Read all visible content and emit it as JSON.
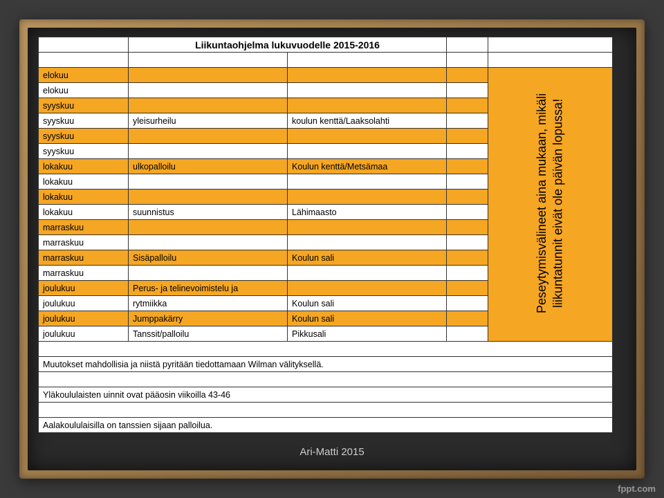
{
  "title": "Liikuntaohjelma lukuvuodelle 2015-2016",
  "rows": [
    {
      "c1": "elokuu",
      "c2": "",
      "c3": "",
      "bg": "yellow"
    },
    {
      "c1": "elokuu",
      "c2": "",
      "c3": "",
      "bg": "white"
    },
    {
      "c1": "syyskuu",
      "c2": "",
      "c3": "",
      "bg": "yellow"
    },
    {
      "c1": "syyskuu",
      "c2": "yleisurheilu",
      "c3": "koulun kenttä/Laaksolahti",
      "bg": "white"
    },
    {
      "c1": "syyskuu",
      "c2": "",
      "c3": "",
      "bg": "yellow"
    },
    {
      "c1": "syyskuu",
      "c2": "",
      "c3": "",
      "bg": "white"
    },
    {
      "c1": "lokakuu",
      "c2": "ulkopalloilu",
      "c3": "Koulun kenttä/Metsämaa",
      "bg": "yellow"
    },
    {
      "c1": "lokakuu",
      "c2": "",
      "c3": "",
      "bg": "white"
    },
    {
      "c1": "lokakuu",
      "c2": "",
      "c3": "",
      "bg": "yellow"
    },
    {
      "c1": "lokakuu",
      "c2": "suunnistus",
      "c3": "Lähimaasto",
      "bg": "white"
    },
    {
      "c1": "marraskuu",
      "c2": "",
      "c3": "",
      "bg": "yellow"
    },
    {
      "c1": "marraskuu",
      "c2": "",
      "c3": "",
      "bg": "white"
    },
    {
      "c1": "marraskuu",
      "c2": "Sisäpalloilu",
      "c3": "Koulun sali",
      "bg": "yellow"
    },
    {
      "c1": "marraskuu",
      "c2": "",
      "c3": "",
      "bg": "white"
    },
    {
      "c1": "joulukuu",
      "c2": "Perus- ja telinevoimistelu ja",
      "c3": "",
      "bg": "yellow"
    },
    {
      "c1": "joulukuu",
      "c2": "rytmiikka",
      "c3": "Koulun sali",
      "bg": "white"
    },
    {
      "c1": "joulukuu",
      "c2": "Jumppakärry",
      "c3": "Koulun sali",
      "bg": "yellow"
    },
    {
      "c1": "joulukuu",
      "c2": "Tanssit/palloilu",
      "c3": "Pikkusali",
      "bg": "white"
    }
  ],
  "vertical_note": "Peseytymisvälineet aina mukaan, mikäli liikuntatunnit eivät ole päivän lopussa!",
  "notes": [
    "Muutokset mahdollisia ja niistä pyritään tiedottamaan Wilman välityksellä.",
    "Yläkoululaisten uinnit ovat pääosin viikoilla 43-46",
    "Aalakoululaisilla on tanssien sijaan palloilua."
  ],
  "footer": "Ari-Matti 2015",
  "watermark": "fppt.com",
  "colors": {
    "yellow": "#f5a623",
    "white": "#ffffff",
    "board": "#2a2a2a",
    "frame": "#9a7849"
  }
}
